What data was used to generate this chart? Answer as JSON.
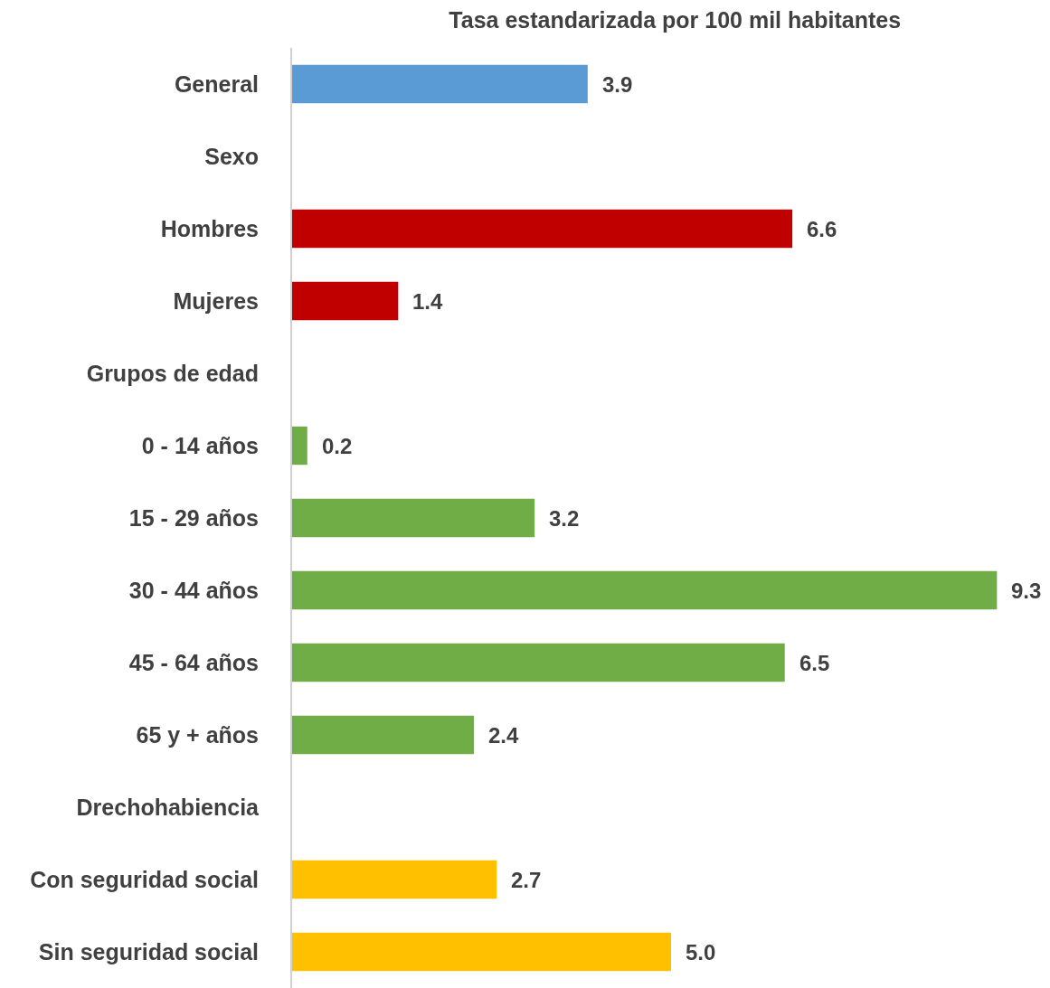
{
  "chart_data": {
    "type": "bar",
    "orientation": "horizontal",
    "title": "Tasa estandarizada por 100 mil habitantes",
    "categories": [
      "General",
      "Sexo",
      "Hombres",
      "Mujeres",
      "Grupos de edad",
      "0 - 14 años",
      "15 - 29 años",
      "30 - 44 años",
      "45 - 64 años",
      "65 y + años",
      "Drechohabiencia",
      "Con seguridad social",
      "Sin seguridad social"
    ],
    "values": [
      3.9,
      null,
      6.6,
      1.4,
      null,
      0.2,
      3.2,
      9.3,
      6.5,
      2.4,
      null,
      2.7,
      5.0
    ],
    "value_labels": [
      "3.9",
      null,
      "6.6",
      "1.4",
      null,
      "0.2",
      "3.2",
      "9.3",
      "6.5",
      "2.4",
      null,
      "2.7",
      "5.0"
    ],
    "colors": [
      "#5b9bd5",
      null,
      "#c00000",
      "#c00000",
      null,
      "#70ad47",
      "#70ad47",
      "#70ad47",
      "#70ad47",
      "#70ad47",
      null,
      "#ffc000",
      "#ffc000"
    ],
    "xlim": [
      0,
      10
    ],
    "tick_labels": "y"
  }
}
